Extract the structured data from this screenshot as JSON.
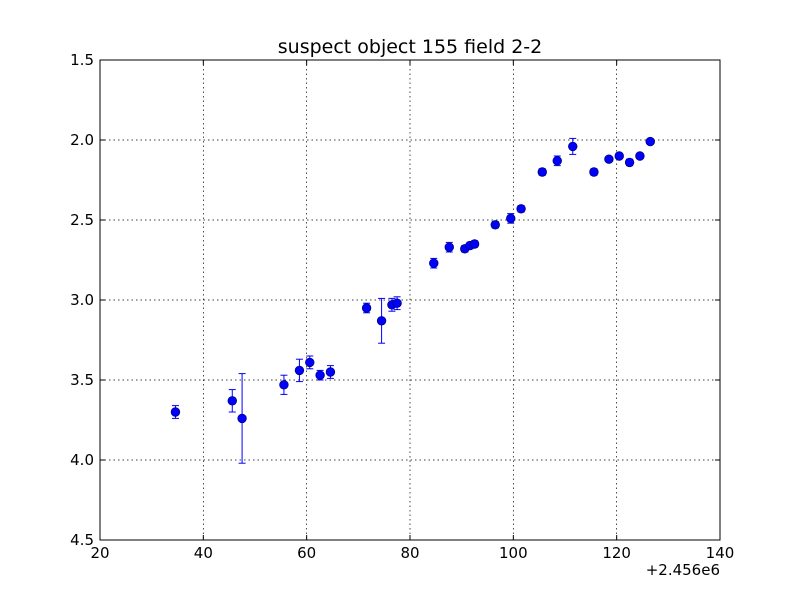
{
  "chart_data": {
    "type": "scatter",
    "title": "suspect object 155 field 2-2",
    "xlabel": "",
    "ylabel": "",
    "x_offset_label": "+2.456e6",
    "xlim": [
      20,
      140
    ],
    "ylim": [
      4.5,
      1.5
    ],
    "y_inverted": true,
    "grid": true,
    "x_ticks": [
      "20",
      "40",
      "60",
      "80",
      "100",
      "120",
      "140"
    ],
    "y_ticks": [
      "1.5",
      "2.0",
      "2.5",
      "3.0",
      "3.5",
      "4.0",
      "4.5"
    ],
    "marker_color": "#0000ff",
    "points": [
      {
        "x": 34.6,
        "y": 3.7,
        "err": 0.04
      },
      {
        "x": 45.6,
        "y": 3.63,
        "err": 0.07
      },
      {
        "x": 47.5,
        "y": 3.74,
        "err": 0.28
      },
      {
        "x": 55.6,
        "y": 3.53,
        "err": 0.06
      },
      {
        "x": 58.6,
        "y": 3.44,
        "err": 0.07
      },
      {
        "x": 60.6,
        "y": 3.39,
        "err": 0.04
      },
      {
        "x": 62.6,
        "y": 3.47,
        "err": 0.03
      },
      {
        "x": 64.6,
        "y": 3.45,
        "err": 0.04
      },
      {
        "x": 71.6,
        "y": 3.05,
        "err": 0.03
      },
      {
        "x": 74.5,
        "y": 3.13,
        "err": 0.14
      },
      {
        "x": 76.5,
        "y": 3.03,
        "err": 0.04
      },
      {
        "x": 77.5,
        "y": 3.02,
        "err": 0.04
      },
      {
        "x": 84.6,
        "y": 2.77,
        "err": 0.03
      },
      {
        "x": 87.6,
        "y": 2.67,
        "err": 0.03
      },
      {
        "x": 90.6,
        "y": 2.68,
        "err": 0.02
      },
      {
        "x": 91.6,
        "y": 2.66,
        "err": 0.02
      },
      {
        "x": 92.5,
        "y": 2.65,
        "err": 0.02
      },
      {
        "x": 96.5,
        "y": 2.53,
        "err": 0.02
      },
      {
        "x": 99.5,
        "y": 2.49,
        "err": 0.03
      },
      {
        "x": 101.5,
        "y": 2.43,
        "err": 0.02
      },
      {
        "x": 105.6,
        "y": 2.2,
        "err": 0.02
      },
      {
        "x": 108.5,
        "y": 2.13,
        "err": 0.03
      },
      {
        "x": 111.5,
        "y": 2.04,
        "err": 0.05
      },
      {
        "x": 115.6,
        "y": 2.2,
        "err": 0.02
      },
      {
        "x": 118.5,
        "y": 2.12,
        "err": 0.01
      },
      {
        "x": 120.5,
        "y": 2.1,
        "err": 0.01
      },
      {
        "x": 122.5,
        "y": 2.14,
        "err": 0.02
      },
      {
        "x": 124.5,
        "y": 2.1,
        "err": 0.01
      },
      {
        "x": 126.5,
        "y": 2.01,
        "err": 0.01
      }
    ]
  }
}
